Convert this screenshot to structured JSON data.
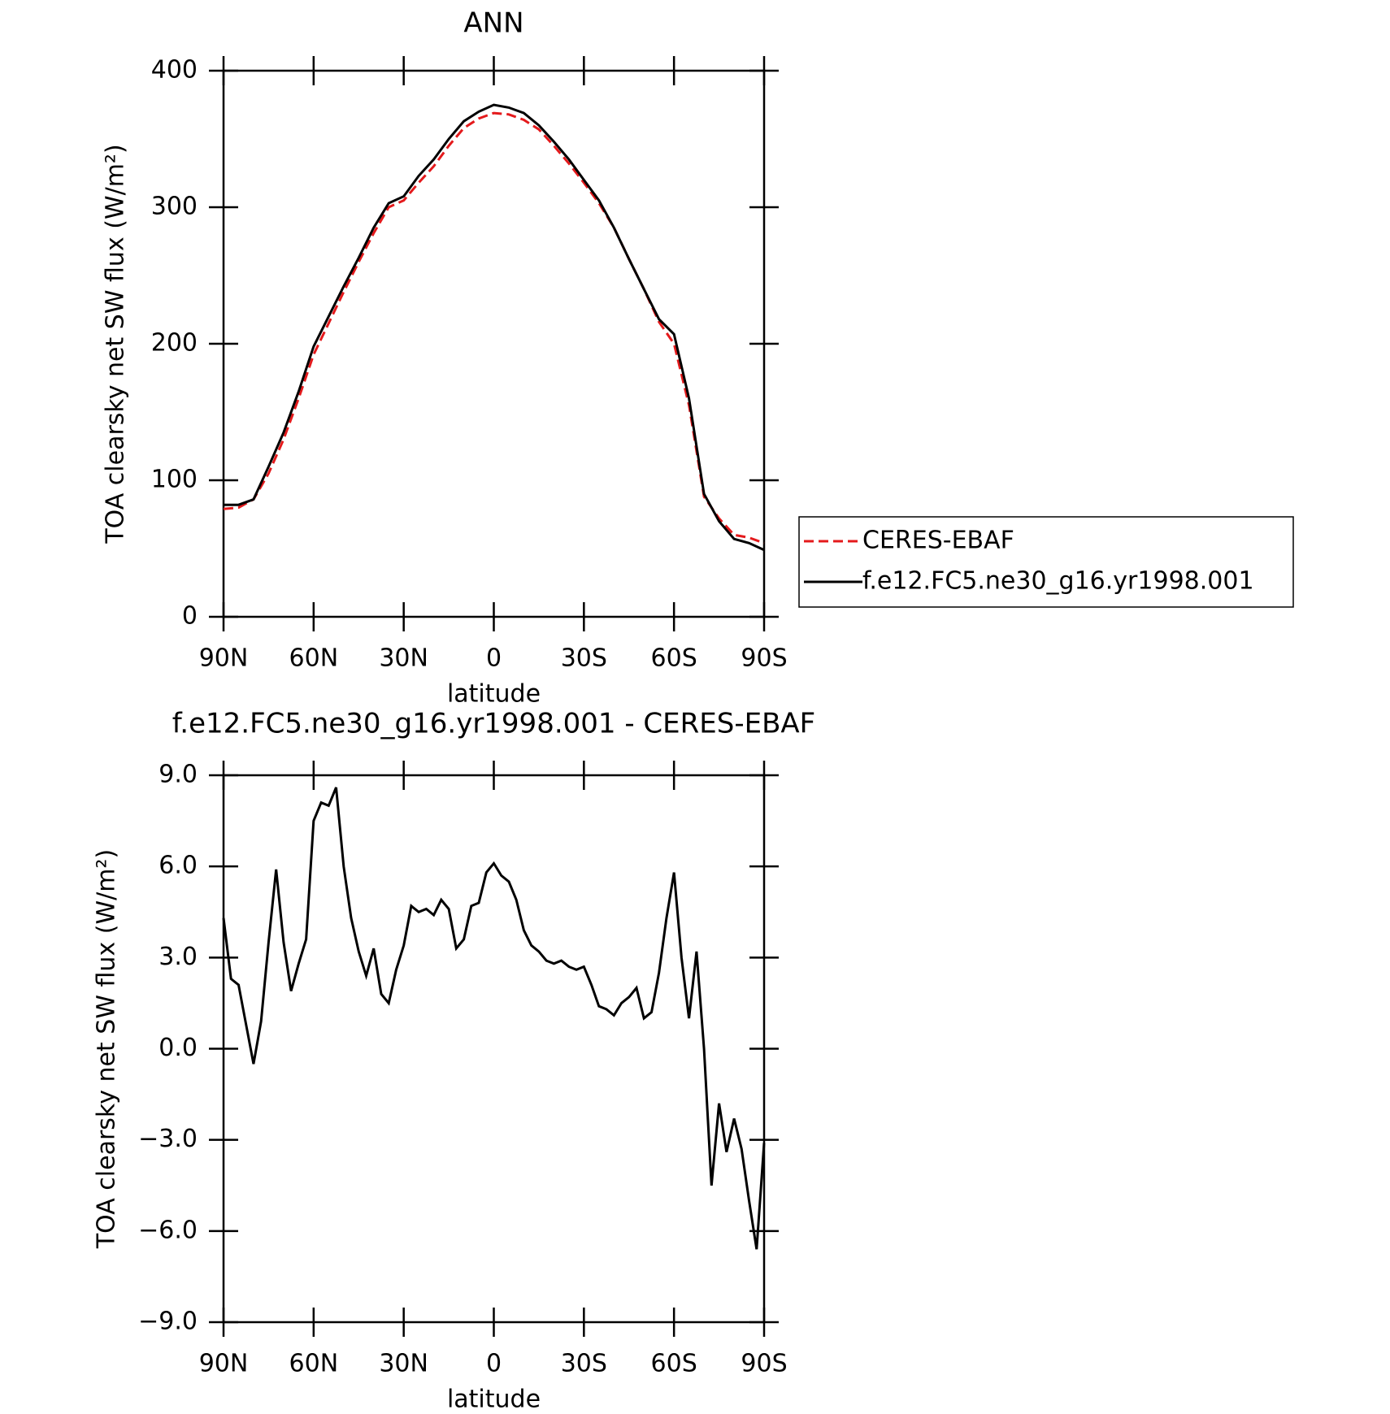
{
  "chart_data": [
    {
      "type": "line",
      "title": "ANN",
      "xlabel": "latitude",
      "ylabel": "TOA clearsky net SW flux (W/m²)",
      "x": [
        90,
        85,
        80,
        75,
        70,
        65,
        60,
        55,
        50,
        45,
        40,
        35,
        30,
        25,
        20,
        15,
        10,
        5,
        0,
        -5,
        -10,
        -15,
        -20,
        -25,
        -30,
        -35,
        -40,
        -45,
        -50,
        -55,
        -60,
        -65,
        -70,
        -75,
        -80,
        -85,
        -90
      ],
      "series": [
        {
          "name": "CERES-EBAF",
          "color": "#e41a1c",
          "style": "dashed",
          "values": [
            79,
            80,
            86,
            105,
            130,
            160,
            192,
            215,
            238,
            260,
            281,
            300,
            305,
            318,
            330,
            345,
            358,
            365,
            369,
            368,
            364,
            357,
            345,
            332,
            318,
            303,
            285,
            262,
            240,
            216,
            200,
            155,
            88,
            72,
            60,
            58,
            54
          ]
        },
        {
          "name": "f.e12.FC5.ne30_g16.yr1998.001",
          "color": "#000000",
          "style": "solid",
          "values": [
            82,
            82,
            86,
            110,
            135,
            165,
            198,
            220,
            242,
            263,
            285,
            303,
            308,
            323,
            335,
            350,
            363,
            370,
            375,
            373,
            369,
            360,
            348,
            335,
            320,
            305,
            285,
            262,
            240,
            218,
            207,
            160,
            90,
            70,
            57,
            54,
            49
          ]
        }
      ],
      "xlim": [
        90,
        -90
      ],
      "xticks": [
        {
          "value": 90,
          "label": "90N"
        },
        {
          "value": 60,
          "label": "60N"
        },
        {
          "value": 30,
          "label": "30N"
        },
        0,
        {
          "value": -30,
          "label": "30S"
        },
        {
          "value": -60,
          "label": "60S"
        },
        {
          "value": -90,
          "label": "90S"
        }
      ],
      "ylim": [
        0,
        400
      ],
      "yticks": [
        0,
        100,
        200,
        300,
        400
      ],
      "legend": "right"
    },
    {
      "type": "line",
      "title": "f.e12.FC5.ne30_g16.yr1998.001 - CERES-EBAF",
      "xlabel": "latitude",
      "ylabel": "TOA clearsky net SW flux (W/m²)",
      "x": [
        90,
        87.5,
        85,
        82.5,
        80,
        77.5,
        75,
        72.5,
        70,
        67.5,
        65,
        62.5,
        60,
        57.5,
        55,
        52.5,
        50,
        47.5,
        45,
        42.5,
        40,
        37.5,
        35,
        32.5,
        30,
        27.5,
        25,
        22.5,
        20,
        17.5,
        15,
        12.5,
        10,
        7.5,
        5,
        2.5,
        0,
        -2.5,
        -5,
        -7.5,
        -10,
        -12.5,
        -15,
        -17.5,
        -20,
        -22.5,
        -25,
        -27.5,
        -30,
        -32.5,
        -35,
        -37.5,
        -40,
        -42.5,
        -45,
        -47.5,
        -50,
        -52.5,
        -55,
        -57.5,
        -60,
        -62.5,
        -65,
        -67.5,
        -70,
        -72.5,
        -75,
        -77.5,
        -80,
        -82.5,
        -85,
        -87.5,
        -90
      ],
      "series": [
        {
          "color": "#000000",
          "style": "solid",
          "values": [
            4.3,
            2.3,
            2.1,
            0.8,
            -0.5,
            0.9,
            3.5,
            5.9,
            3.5,
            1.9,
            2.8,
            3.6,
            7.5,
            8.1,
            8.0,
            8.6,
            6.0,
            4.3,
            3.2,
            2.4,
            3.3,
            1.8,
            1.5,
            2.6,
            3.4,
            4.7,
            4.5,
            4.6,
            4.4,
            4.9,
            4.6,
            3.3,
            3.6,
            4.7,
            4.8,
            5.8,
            6.1,
            5.7,
            5.5,
            4.9,
            3.9,
            3.4,
            3.2,
            2.9,
            2.8,
            2.9,
            2.7,
            2.6,
            2.7,
            2.1,
            1.4,
            1.3,
            1.1,
            1.5,
            1.7,
            2.0,
            1.0,
            1.2,
            2.5,
            4.3,
            5.8,
            3.0,
            1.0,
            3.2,
            0.0,
            -4.5,
            -1.8,
            -3.4,
            -2.3,
            -3.3,
            -5.0,
            -6.6,
            -3.1
          ]
        }
      ],
      "xlim": [
        90,
        -90
      ],
      "xticks": [
        {
          "value": 90,
          "label": "90N"
        },
        {
          "value": 60,
          "label": "60N"
        },
        {
          "value": 30,
          "label": "30N"
        },
        0,
        {
          "value": -30,
          "label": "30S"
        },
        {
          "value": -60,
          "label": "60S"
        },
        {
          "value": -90,
          "label": "90S"
        }
      ],
      "ylim": [
        -9,
        9
      ],
      "yticks": [
        {
          "value": -9,
          "label": "−9.0"
        },
        {
          "value": -6,
          "label": "−6.0"
        },
        {
          "value": -3,
          "label": "−3.0"
        },
        {
          "value": 0,
          "label": "0.0"
        },
        {
          "value": 3,
          "label": "3.0"
        },
        {
          "value": 6,
          "label": "6.0"
        },
        {
          "value": 9,
          "label": "9.0"
        }
      ]
    }
  ]
}
